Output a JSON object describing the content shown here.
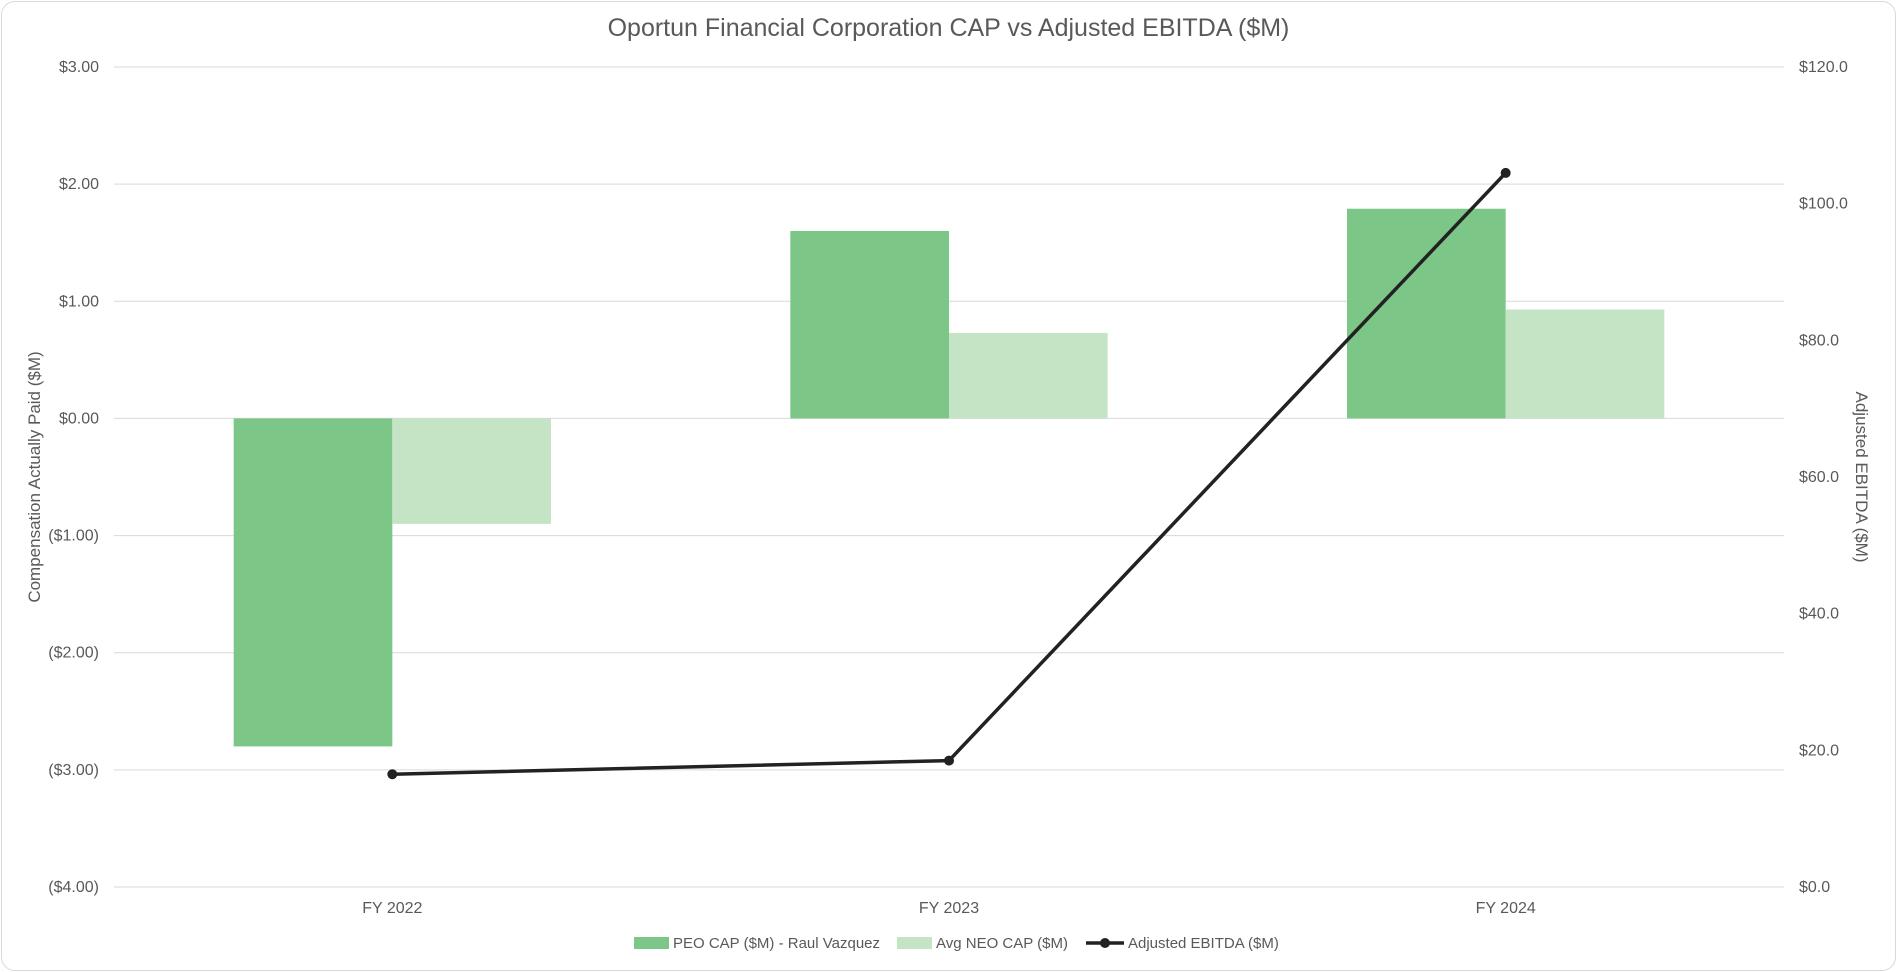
{
  "chart_data": {
    "type": "bar",
    "title": "Oportun Financial Corporation CAP vs Adjusted EBITDA ($M)",
    "categories": [
      "FY 2022",
      "FY 2023",
      "FY 2024"
    ],
    "y_left": {
      "label": "Compensation Actually Paid ($M)",
      "range": [
        -4,
        3
      ],
      "ticks": [
        3,
        2,
        1,
        0,
        -1,
        -2,
        -3,
        -4
      ],
      "tick_labels": [
        "$3.00",
        "$2.00",
        "$1.00",
        "$0.00",
        "($1.00)",
        "($2.00)",
        "($3.00)",
        "($4.00)"
      ]
    },
    "y_right": {
      "label": "Adjusted EBITDA ($M)",
      "range": [
        0,
        120
      ],
      "ticks": [
        120,
        100,
        80,
        60,
        40,
        20,
        0
      ],
      "tick_labels": [
        "$120.0",
        "$100.0",
        "$80.0",
        "$60.0",
        "$40.0",
        "$20.0",
        "$0.0"
      ]
    },
    "series": [
      {
        "name": "PEO CAP ($M) - Raul Vazquez",
        "type": "bar",
        "axis": "left",
        "color": "#7cc687",
        "values": [
          -2.8,
          1.6,
          1.79
        ]
      },
      {
        "name": "Avg NEO CAP ($M)",
        "type": "bar",
        "axis": "left",
        "color": "#c5e3c5",
        "values": [
          -0.9,
          0.73,
          0.93
        ]
      },
      {
        "name": "Adjusted EBITDA ($M)",
        "type": "line",
        "axis": "right",
        "color": "#222222",
        "values": [
          16.5,
          18.5,
          104.5
        ]
      }
    ],
    "grid": true,
    "legend": "bottom-center"
  }
}
